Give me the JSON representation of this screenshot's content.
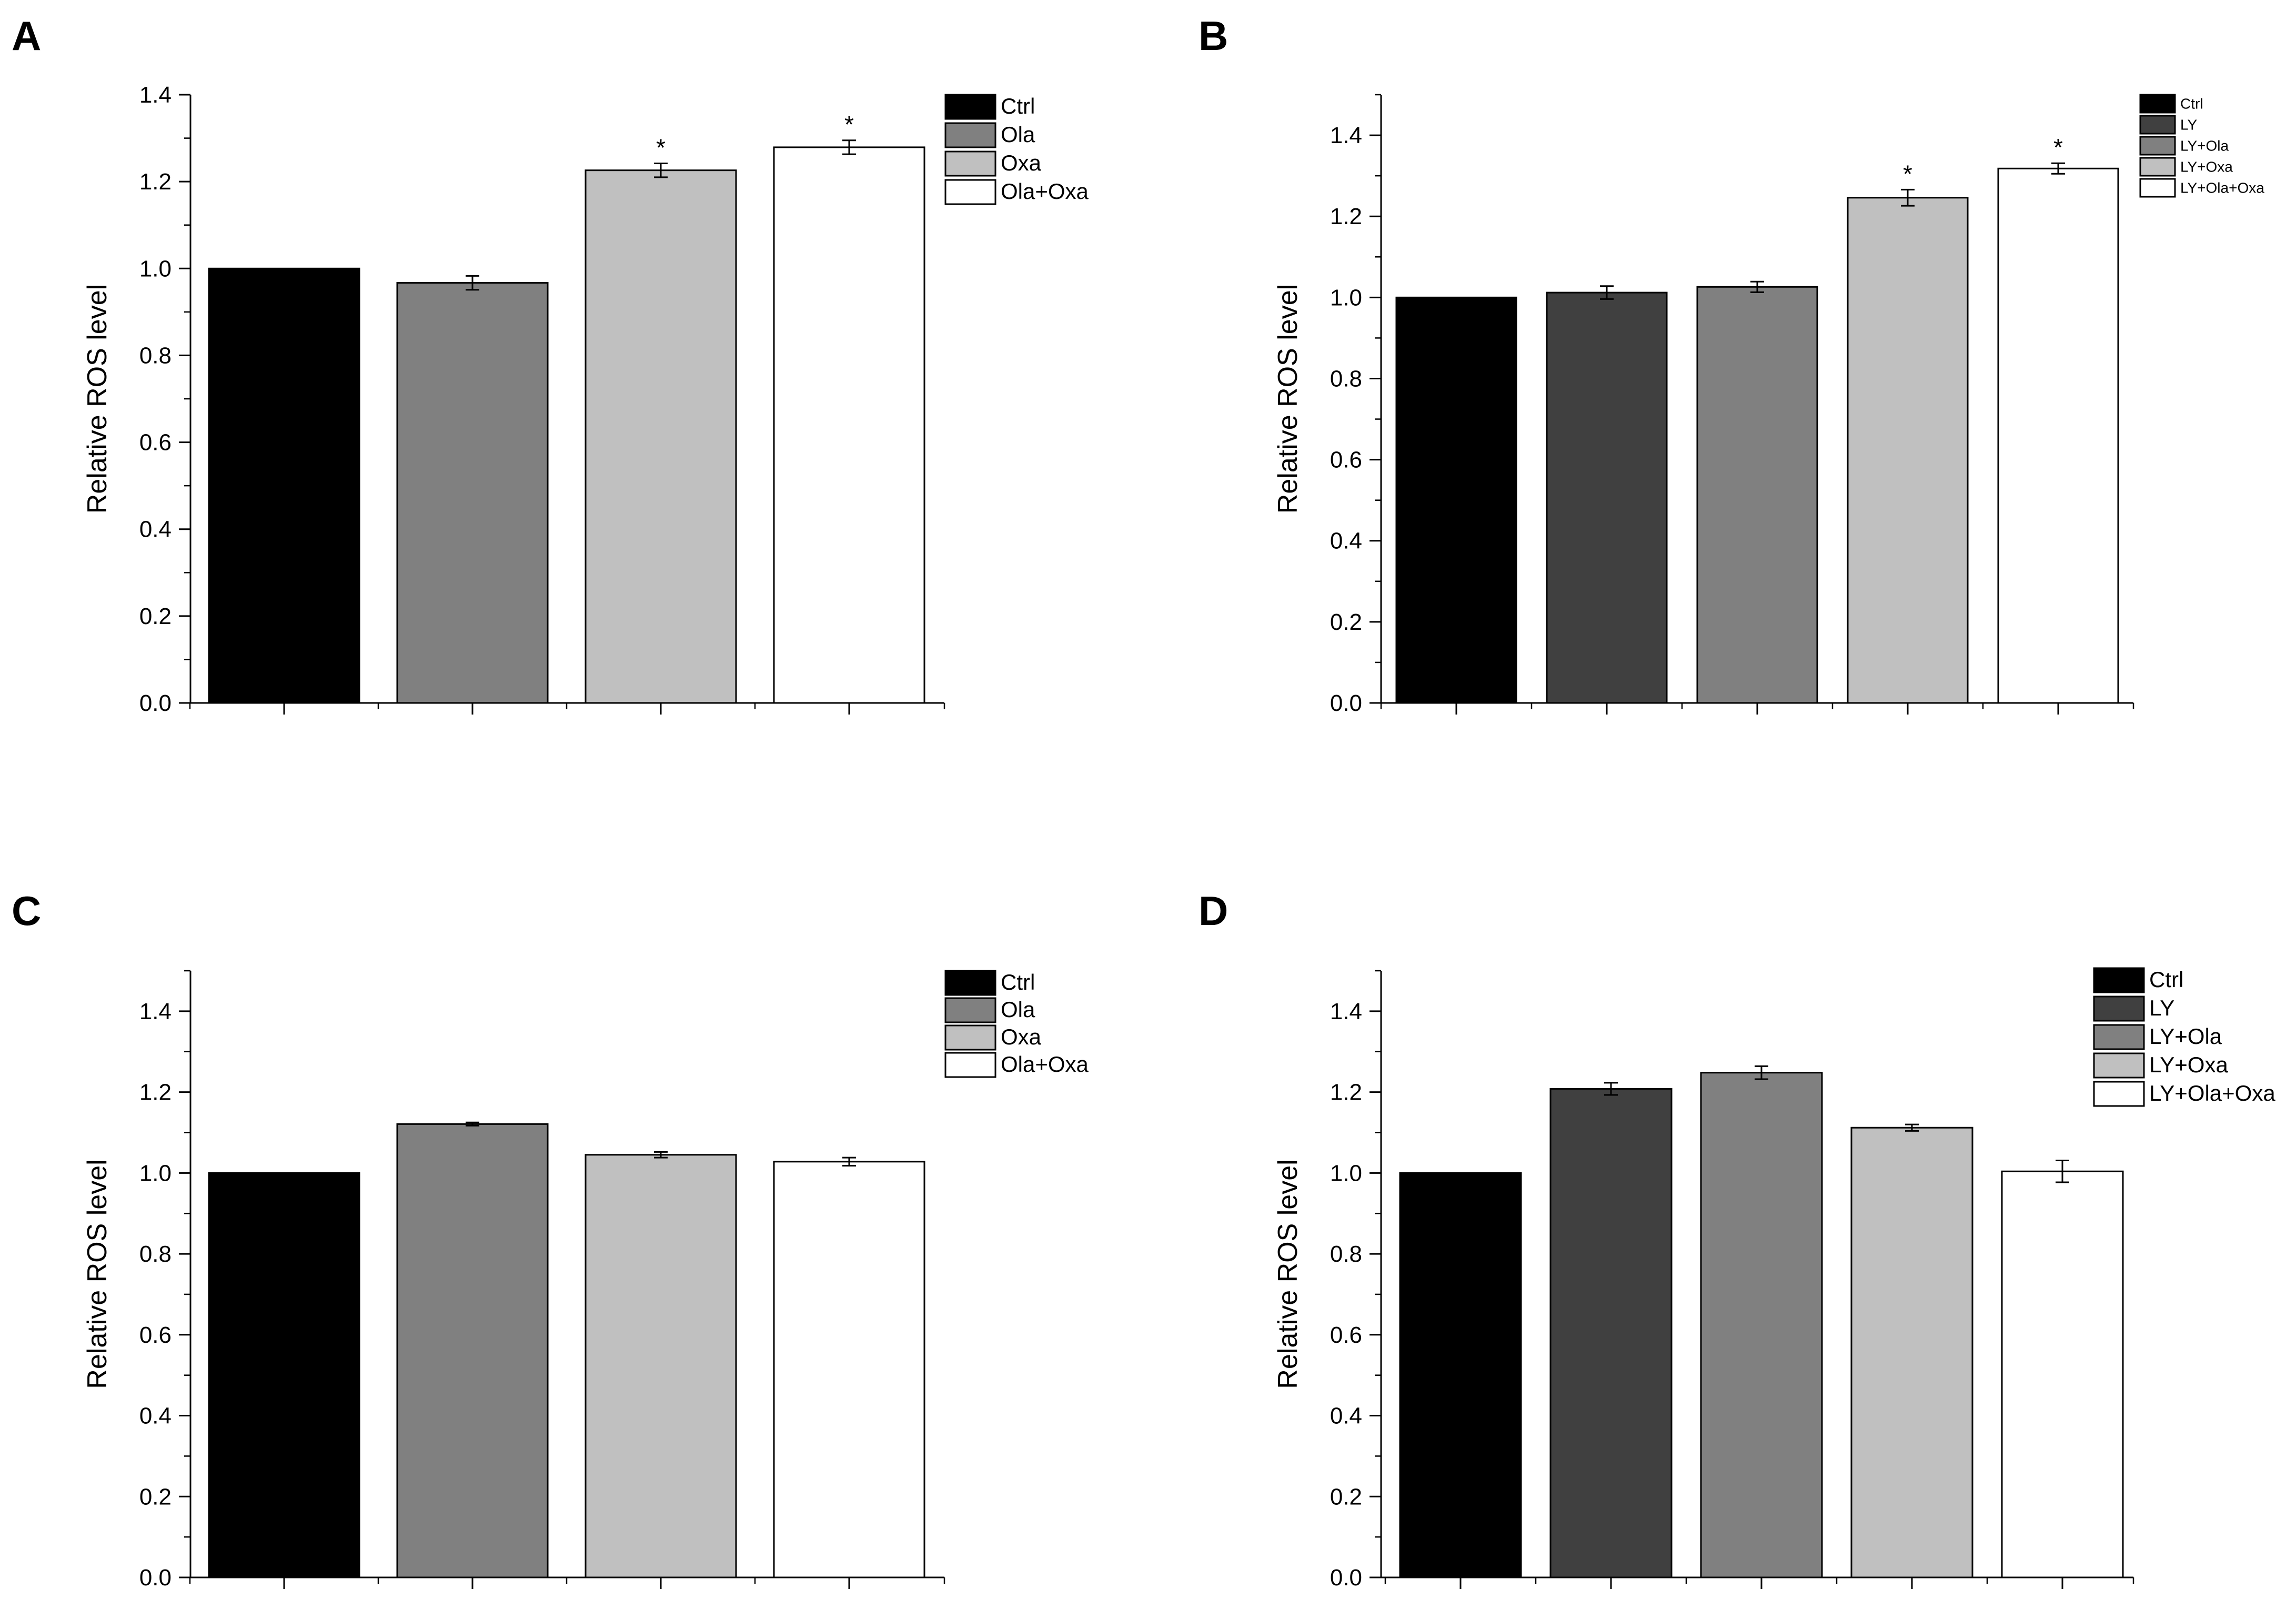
{
  "figure": {
    "panels": [
      "A",
      "B",
      "C",
      "D"
    ]
  },
  "chart_data": [
    {
      "panel": "A",
      "type": "bar",
      "categories": [
        "Ctrl",
        "Ola",
        "Oxa",
        "Ola+Oxa"
      ],
      "values": [
        1.0,
        0.967,
        1.226,
        1.279
      ],
      "errors": [
        0.0,
        0.016,
        0.016,
        0.016
      ],
      "colors": [
        "#000000",
        "#808080",
        "#c0c0c0",
        "#ffffff"
      ],
      "significance": [
        "",
        "",
        "*",
        "*"
      ],
      "title": "",
      "xlabel": "",
      "ylabel": "Relative ROS level",
      "ylim": [
        0,
        1.4
      ],
      "yticks": [
        "0.0",
        "0.2",
        "0.4",
        "0.6",
        "0.8",
        "1.0",
        "1.2",
        "1.4"
      ],
      "legend": [
        "Ctrl",
        "Ola",
        "Oxa",
        "Ola+Oxa"
      ],
      "legend_position": "top-right",
      "grid": false
    },
    {
      "panel": "B",
      "type": "bar",
      "categories": [
        "Ctrl",
        "LY",
        "LY+Ola",
        "LY+Oxa",
        "LY+Ola+Oxa"
      ],
      "values": [
        1.0,
        1.012,
        1.026,
        1.246,
        1.318
      ],
      "errors": [
        0.0,
        0.016,
        0.013,
        0.02,
        0.013
      ],
      "colors": [
        "#000000",
        "#404040",
        "#808080",
        "#c0c0c0",
        "#ffffff"
      ],
      "significance": [
        "",
        "",
        "",
        "*",
        "*"
      ],
      "title": "",
      "xlabel": "",
      "ylabel": "Relative ROS level",
      "ylim": [
        0,
        1.5
      ],
      "yticks": [
        "0.0",
        "0.2",
        "0.4",
        "0.6",
        "0.8",
        "1.0",
        "1.2",
        "1.4"
      ],
      "legend": [
        "Ctrl",
        "LY",
        "LY+Ola",
        "LY+Oxa",
        "LY+Ola+Oxa"
      ],
      "legend_position": "top-right",
      "grid": false
    },
    {
      "panel": "C",
      "type": "bar",
      "categories": [
        "Ctrl",
        "Ola",
        "Oxa",
        "Ola+Oxa"
      ],
      "values": [
        1.0,
        1.121,
        1.045,
        1.028
      ],
      "errors": [
        0.0,
        0.004,
        0.007,
        0.01
      ],
      "colors": [
        "#000000",
        "#808080",
        "#c0c0c0",
        "#ffffff"
      ],
      "significance": [
        "",
        "",
        "",
        ""
      ],
      "title": "",
      "xlabel": "",
      "ylabel": "Relative ROS level",
      "ylim": [
        0,
        1.5
      ],
      "yticks": [
        "0.0",
        "0.2",
        "0.4",
        "0.6",
        "0.8",
        "1.0",
        "1.2",
        "1.4"
      ],
      "legend": [
        "Ctrl",
        "Ola",
        "Oxa",
        "Ola+Oxa"
      ],
      "legend_position": "top-right",
      "grid": false
    },
    {
      "panel": "D",
      "type": "bar",
      "categories": [
        "Ctrl",
        "LY",
        "LY+Ola",
        "LY+Oxa",
        "LY+Ola+Oxa"
      ],
      "values": [
        1.0,
        1.208,
        1.248,
        1.112,
        1.004
      ],
      "errors": [
        0.0,
        0.015,
        0.016,
        0.008,
        0.027
      ],
      "colors": [
        "#000000",
        "#404040",
        "#808080",
        "#c0c0c0",
        "#ffffff"
      ],
      "significance": [
        "",
        "",
        "",
        "",
        ""
      ],
      "title": "",
      "xlabel": "",
      "ylabel": "Relative ROS level",
      "ylim": [
        0,
        1.5
      ],
      "yticks": [
        "0.0",
        "0.2",
        "0.4",
        "0.6",
        "0.8",
        "1.0",
        "1.2",
        "1.4"
      ],
      "legend": [
        "Ctrl",
        "LY",
        "LY+Ola",
        "LY+Oxa",
        "LY+Ola+Oxa"
      ],
      "legend_position": "top-right",
      "grid": false
    }
  ]
}
